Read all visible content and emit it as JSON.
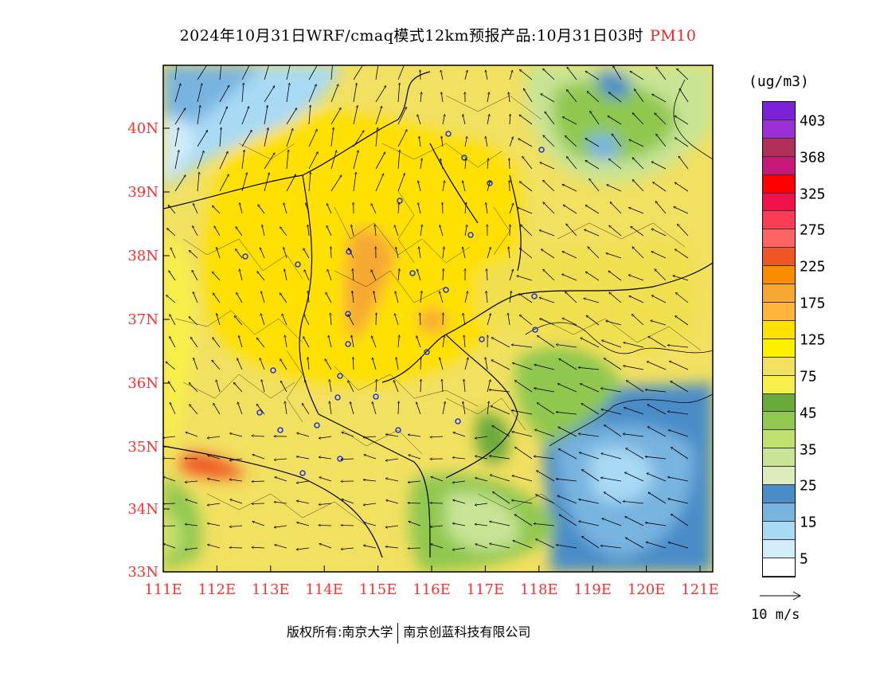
{
  "title": {
    "main": "2024年10月31日WRF/cmaq模式12km预报产品:10月31日03时",
    "variable": "PM10"
  },
  "map": {
    "lat_labels": [
      "40N",
      "39N",
      "38N",
      "37N",
      "36N",
      "35N",
      "34N",
      "33N"
    ],
    "lon_labels": [
      "111E",
      "112E",
      "113E",
      "114E",
      "115E",
      "116E",
      "117E",
      "118E",
      "119E",
      "120E",
      "121E"
    ],
    "axis_color": "#ff3030"
  },
  "colorbar": {
    "unit": "(ug/m3)",
    "labels": [
      "403",
      "368",
      "325",
      "275",
      "225",
      "175",
      "125",
      "75",
      "45",
      "35",
      "25",
      "15",
      "5"
    ],
    "colors": [
      "#7b22d9",
      "#9b30d6",
      "#b0305a",
      "#c8187a",
      "#ff0000",
      "#f0104a",
      "#ff3a55",
      "#ff6464",
      "#ef5525",
      "#fa8c00",
      "#f7a832",
      "#ffb43c",
      "#ffe000",
      "#fff000",
      "#f2e060",
      "#f8f04a",
      "#6aaa3a",
      "#90c850",
      "#c0e070",
      "#c8e494",
      "#dcecbc",
      "#4a8cc8",
      "#78b4e0",
      "#a8daf4",
      "#d2ecfa",
      "#ffffff"
    ]
  },
  "scale": {
    "label": "10 m/s"
  },
  "footer": {
    "left": "版权所有:南京大学",
    "right": "南京创蓝科技有限公司"
  }
}
